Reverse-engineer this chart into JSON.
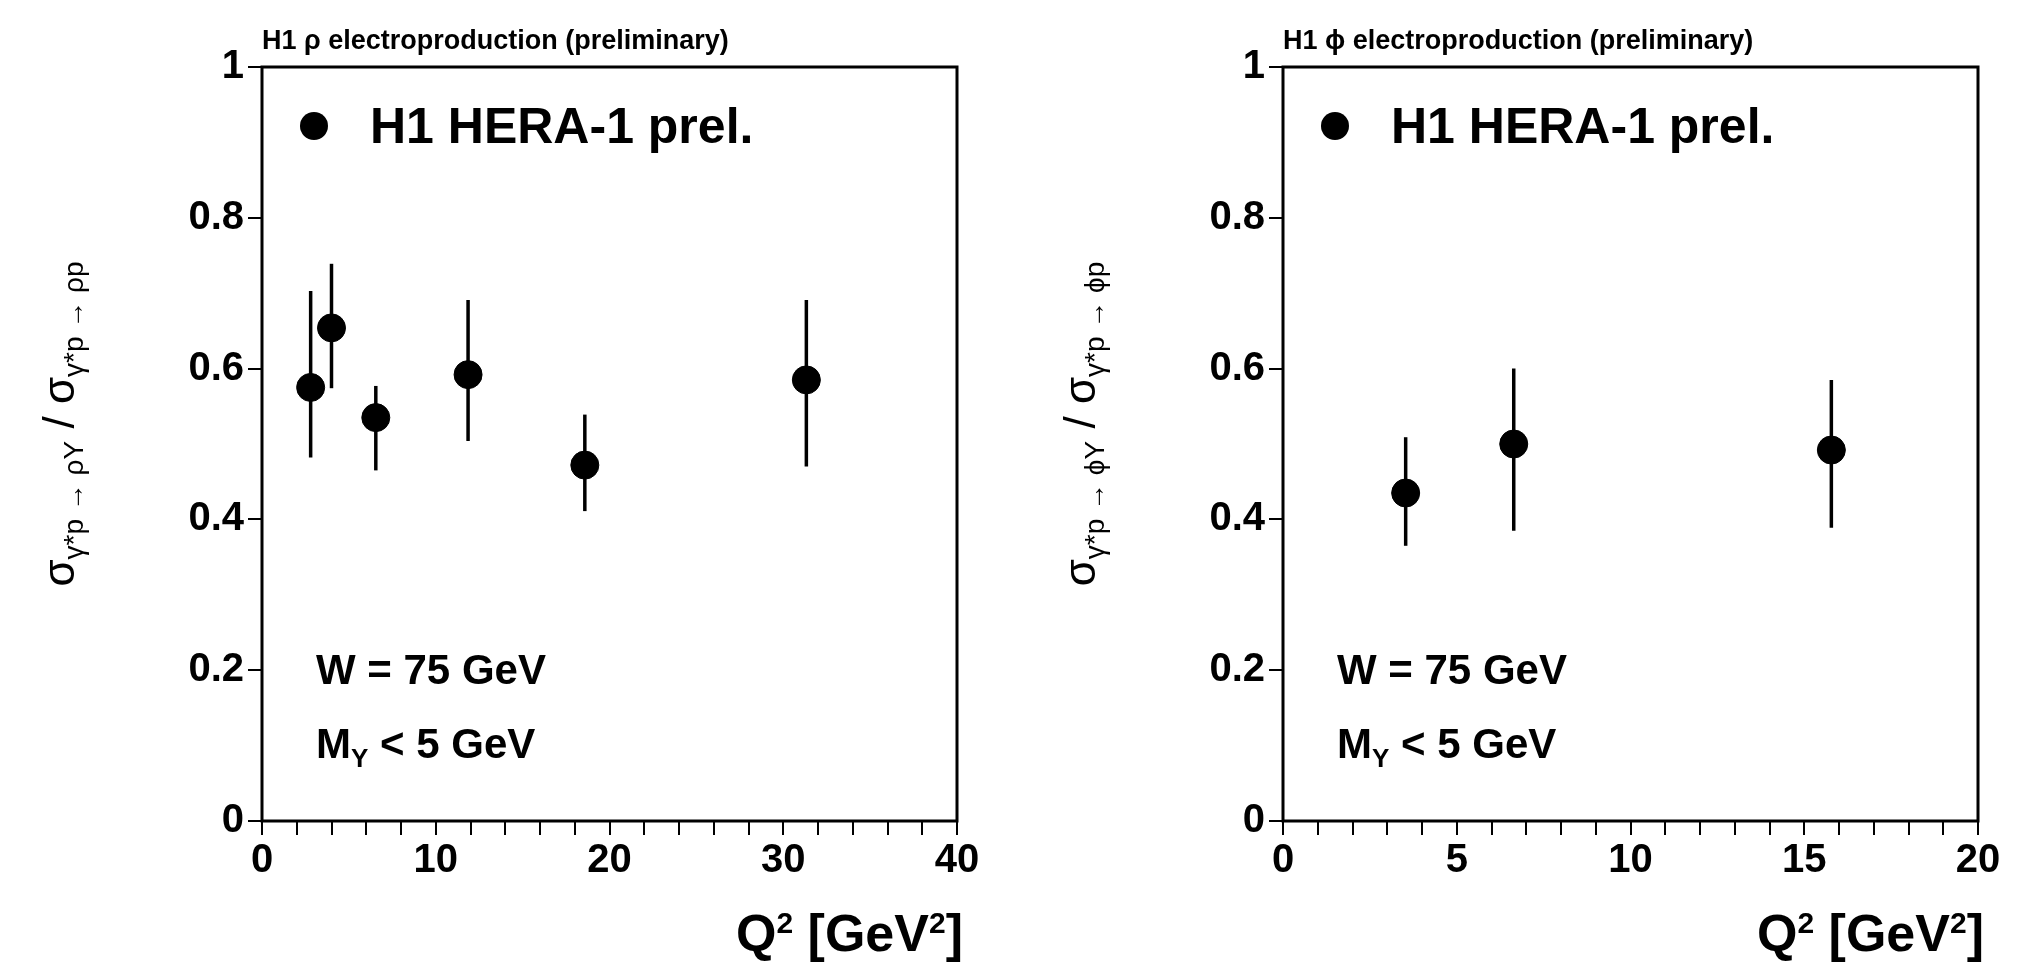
{
  "chart_data": [
    {
      "type": "scatter",
      "title": "H1 ρ electroproduction (preliminary)",
      "xlabel": "Q$^{2}$ [GeV$^{2}$]",
      "ylabel": "σ$_{γ*p → ρY}$ / σ$_{γ*p → ρp}$",
      "annotations": [
        "W = 75 GeV",
        "M$_{Y}$ < 5 GeV"
      ],
      "x": [
        2.8,
        4.0,
        6.55,
        11.86,
        18.58,
        31.33
      ],
      "series": [
        {
          "name": "H1 HERA-1 prel.",
          "color": "#000000",
          "marker": "circle",
          "values": [
            0.575,
            0.654,
            0.535,
            0.592,
            0.472,
            0.585
          ],
          "errors": [
            [
              0.482,
              0.703
            ],
            [
              0.574,
              0.739
            ],
            [
              0.465,
              0.577
            ],
            [
              0.504,
              0.691
            ],
            [
              0.411,
              0.539
            ],
            [
              0.47,
              0.691
            ]
          ]
        }
      ],
      "xlim": [
        0,
        40
      ],
      "ylim": [
        0,
        1
      ],
      "xticks": [
        0,
        {
          "value": 2,
          "label": null
        },
        {
          "value": 4,
          "label": null
        },
        {
          "value": 6,
          "label": null
        },
        {
          "value": 8,
          "label": null
        },
        10,
        {
          "value": 12,
          "label": null
        },
        {
          "value": 14,
          "label": null
        },
        {
          "value": 16,
          "label": null
        },
        {
          "value": 18,
          "label": null
        },
        20,
        {
          "value": 22,
          "label": null
        },
        {
          "value": 24,
          "label": null
        },
        {
          "value": 26,
          "label": null
        },
        {
          "value": 28,
          "label": null
        },
        30,
        {
          "value": 32,
          "label": null
        },
        {
          "value": 34,
          "label": null
        },
        {
          "value": 36,
          "label": null
        },
        {
          "value": 38,
          "label": null
        },
        40
      ],
      "yticks": [
        0,
        0.2,
        0.4,
        0.6,
        0.8,
        1
      ],
      "grid": false,
      "legend": "top left"
    },
    {
      "type": "scatter",
      "title": "H1 ϕ electroproduction (preliminary)",
      "xlabel": "Q$^{2}$ [GeV$^{2}$]",
      "ylabel": "σ$_{γ*p → ϕY}$ / σ$_{γ*p → ϕp}$",
      "annotations": [
        "W = 75 GeV",
        "M$_{Y}$ < 5 GeV"
      ],
      "x": [
        3.53,
        6.64,
        15.78
      ],
      "series": [
        {
          "name": "H1 HERA-1 prel.",
          "color": "#000000",
          "marker": "circle",
          "values": [
            0.435,
            0.5,
            0.492
          ],
          "errors": [
            [
              0.365,
              0.509
            ],
            [
              0.385,
              0.6
            ],
            [
              0.389,
              0.585
            ]
          ]
        }
      ],
      "xlim": [
        0,
        20
      ],
      "ylim": [
        0,
        1
      ],
      "xticks": [
        0,
        {
          "value": 1,
          "label": null
        },
        {
          "value": 2,
          "label": null
        },
        {
          "value": 3,
          "label": null
        },
        {
          "value": 4,
          "label": null
        },
        5,
        {
          "value": 6,
          "label": null
        },
        {
          "value": 7,
          "label": null
        },
        {
          "value": 8,
          "label": null
        },
        {
          "value": 9,
          "label": null
        },
        10,
        {
          "value": 11,
          "label": null
        },
        {
          "value": 12,
          "label": null
        },
        {
          "value": 13,
          "label": null
        },
        {
          "value": 14,
          "label": null
        },
        15,
        {
          "value": 16,
          "label": null
        },
        {
          "value": 17,
          "label": null
        },
        {
          "value": 18,
          "label": null
        },
        {
          "value": 19,
          "label": null
        },
        20
      ],
      "yticks": [
        0,
        0.2,
        0.4,
        0.6,
        0.8,
        1
      ],
      "grid": false,
      "legend": "top left"
    }
  ]
}
